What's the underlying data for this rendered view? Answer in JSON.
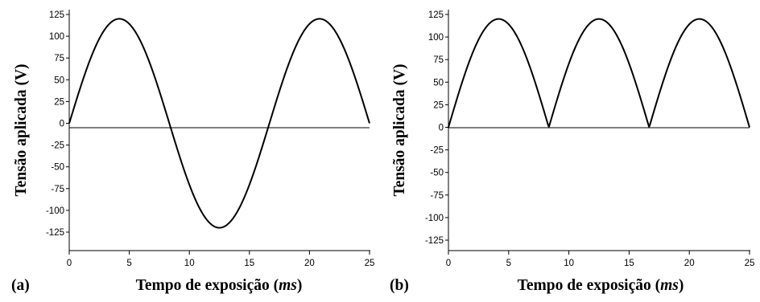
{
  "chart_data": [
    {
      "type": "line",
      "panel_label": "(a)",
      "xlabel": "Tempo de exposição",
      "xlabel_unit": "ms",
      "ylabel": "Tensão aplicada (V)",
      "xlim": [
        0,
        25
      ],
      "ylim": [
        -125,
        125
      ],
      "x_ticks": [
        0,
        5,
        10,
        15,
        20,
        25
      ],
      "y_ticks": [
        125,
        100,
        75,
        50,
        25,
        0,
        -25,
        -50,
        -75,
        -100,
        -125
      ],
      "series": [
        {
          "function": "sine",
          "amplitude": 120,
          "frequency_hz": 60,
          "rectified": false,
          "x_range": [
            0,
            25
          ]
        }
      ]
    },
    {
      "type": "line",
      "panel_label": "(b)",
      "xlabel": "Tempo de exposição",
      "xlabel_unit": "ms",
      "ylabel": "Tensão aplicada (V)",
      "xlim": [
        0,
        25
      ],
      "ylim": [
        -125,
        125
      ],
      "x_ticks": [
        0,
        5,
        10,
        15,
        20,
        25
      ],
      "y_ticks": [
        125,
        100,
        75,
        50,
        25,
        0,
        -25,
        -50,
        -75,
        -100,
        -125
      ],
      "series": [
        {
          "function": "sine",
          "amplitude": 120,
          "frequency_hz": 60,
          "rectified": true,
          "x_range": [
            0,
            25
          ]
        }
      ]
    }
  ]
}
